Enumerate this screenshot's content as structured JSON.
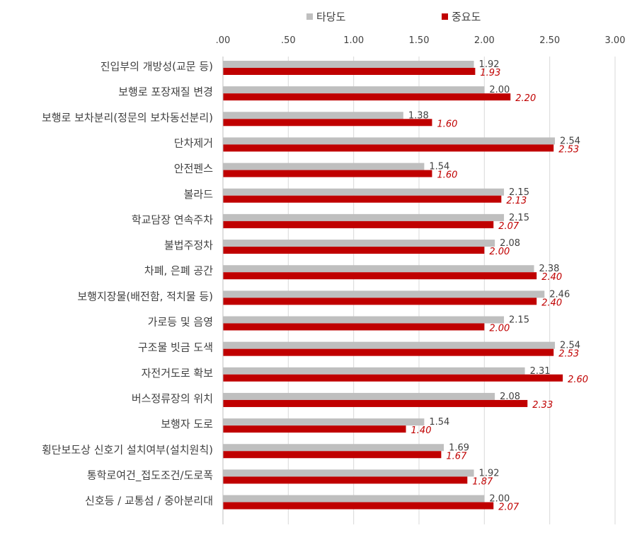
{
  "chart_data": {
    "type": "bar",
    "orientation": "horizontal",
    "categories": [
      "진입부의 개방성(교문 등)",
      "보행로 포장재질 변경",
      "보행로 보차분리(정문의 보차동선분리)",
      "단차제거",
      "안전펜스",
      "볼라드",
      "학교담장 연속주차",
      "불법주정차",
      "차폐, 은폐 공간",
      "보행지장물(배전함, 적치물 등)",
      "가로등 및 음영",
      "구조물 빗금 도색",
      "자전거도로 확보",
      "버스정류장의 위치",
      "보행자 도로",
      "횡단보도상 신호기 설치여부(설치원칙)",
      "통학로여건_접도조건/도로폭",
      "신호등 / 교통섬 / 중아분리대"
    ],
    "series": [
      {
        "name": "타당도",
        "color": "#bfbfbf",
        "values": [
          1.92,
          2.0,
          1.38,
          2.54,
          1.54,
          2.15,
          2.15,
          2.08,
          2.38,
          2.46,
          2.15,
          2.54,
          2.31,
          2.08,
          1.54,
          1.69,
          1.92,
          2.0
        ],
        "labels": [
          "1.92",
          "2.00",
          "1.38",
          "2.54",
          "1.54",
          "2.15",
          "2.15",
          "2.08",
          "2.38",
          "2.46",
          "2.15",
          "2.54",
          "2.31",
          "2.08",
          "1.54",
          "1.69",
          "1.92",
          "2.00"
        ]
      },
      {
        "name": "중요도",
        "color": "#c00000",
        "values": [
          1.93,
          2.2,
          1.6,
          2.53,
          1.6,
          2.13,
          2.07,
          2.0,
          2.4,
          2.4,
          2.0,
          2.53,
          2.6,
          2.33,
          1.4,
          1.67,
          1.87,
          2.07
        ],
        "labels": [
          "1.93",
          "2.20",
          "1.60",
          "2.53",
          "1.60",
          "2.13",
          "2.07",
          "2.00",
          "2.40",
          "2.40",
          "2.00",
          "2.53",
          "2.60",
          "2.33",
          "1.40",
          "1.67",
          "1.87",
          "2.07"
        ]
      }
    ],
    "xlim": [
      0,
      3
    ],
    "xticks": [
      0,
      0.5,
      1,
      1.5,
      2,
      2.5,
      3
    ],
    "xtick_labels": [
      ".00",
      ".50",
      "1.00",
      "1.50",
      "2.00",
      "2.50",
      "3.00"
    ],
    "grid": true,
    "legend_position": "top",
    "title": "",
    "xlabel": "",
    "ylabel": ""
  }
}
